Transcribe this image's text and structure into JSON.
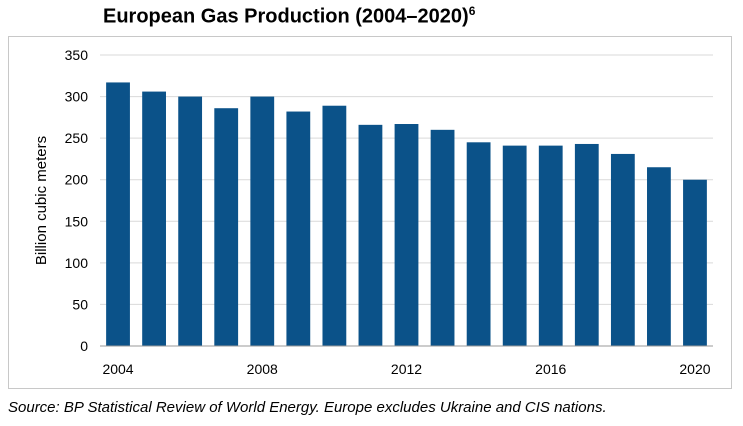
{
  "chart_data": {
    "type": "bar",
    "title": "European Gas Production (2004–2020)",
    "title_superscript": "6",
    "ylabel": "Billion cubic meters",
    "xlabel": "",
    "ylim": [
      0,
      350
    ],
    "yticks": [
      0,
      50,
      100,
      150,
      200,
      250,
      300,
      350
    ],
    "categories": [
      "2004",
      "2005",
      "2006",
      "2007",
      "2008",
      "2009",
      "2010",
      "2011",
      "2012",
      "2013",
      "2014",
      "2015",
      "2016",
      "2017",
      "2018",
      "2019",
      "2020"
    ],
    "xtick_labels": [
      "2004",
      "2008",
      "2012",
      "2016",
      "2020"
    ],
    "values": [
      317,
      306,
      300,
      286,
      300,
      282,
      289,
      266,
      267,
      260,
      245,
      241,
      241,
      243,
      231,
      215,
      200
    ],
    "bar_color": "#0b5289",
    "grid": true,
    "legend": "none",
    "source": "Source: BP Statistical Review of World Energy. Europe excludes Ukraine and CIS nations."
  }
}
